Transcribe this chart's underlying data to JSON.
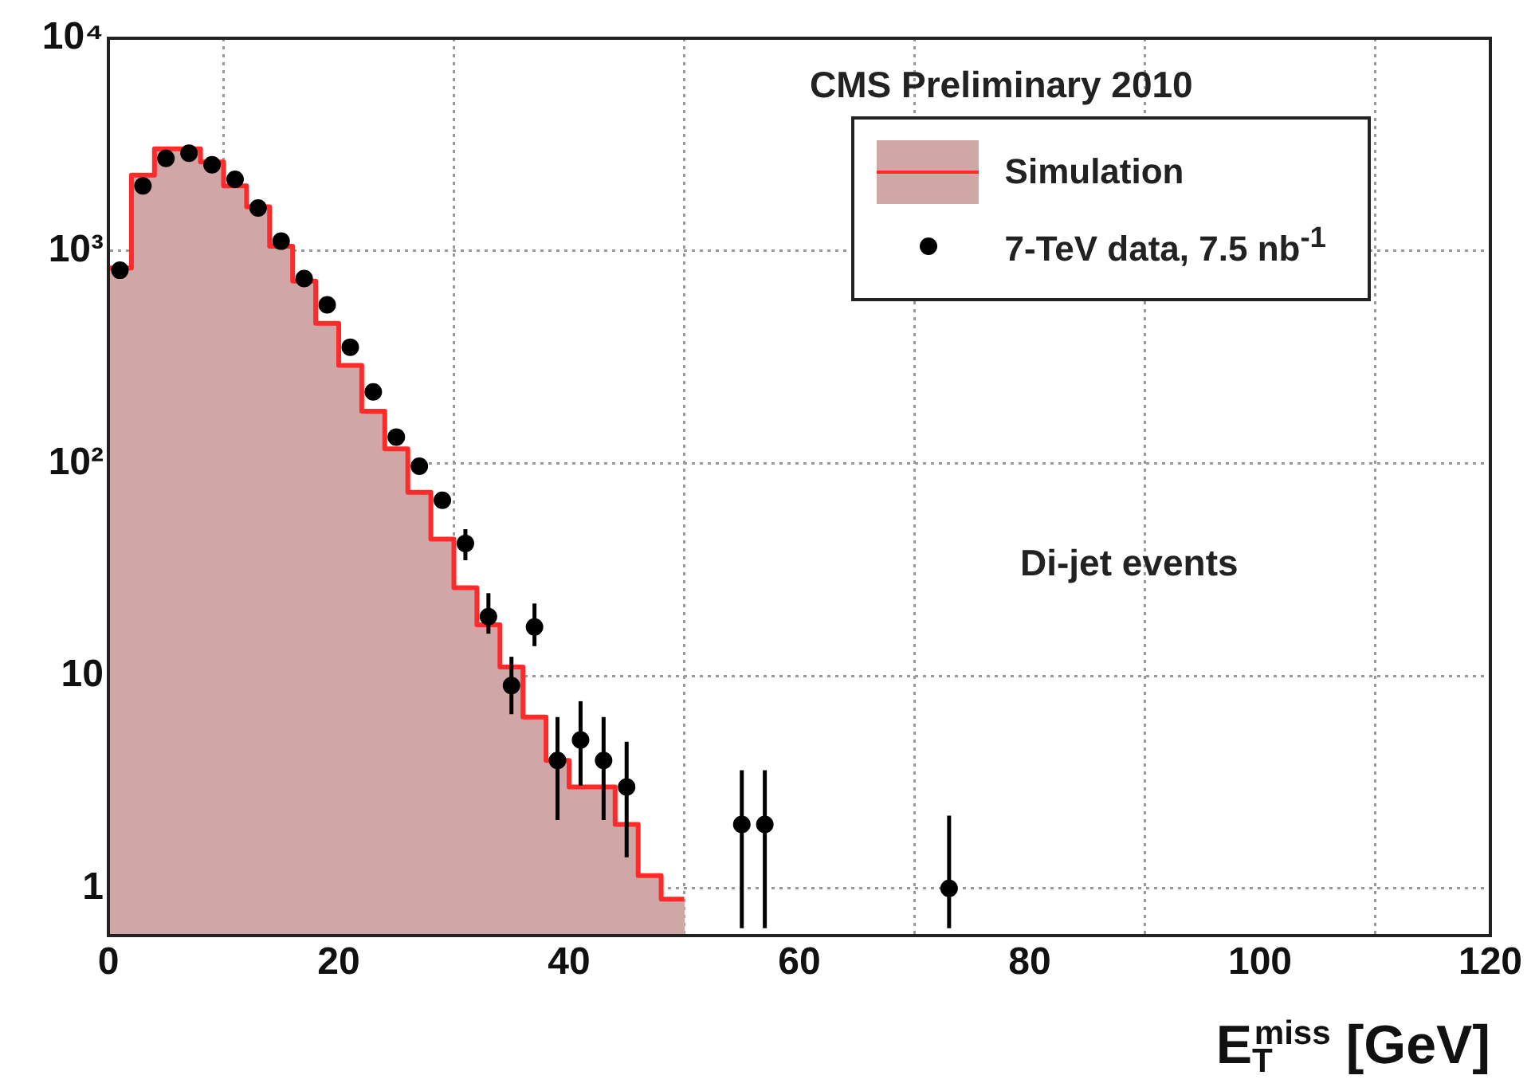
{
  "chart_data": {
    "type": "histogram",
    "xlabel": "E$_{T}$$^{miss}$ [GeV]",
    "bins": [
      0,
      2,
      4,
      6,
      8,
      10,
      12,
      14,
      16,
      18,
      20,
      22,
      24,
      26,
      28,
      30,
      32,
      34,
      36,
      38,
      40,
      42,
      44,
      46,
      48,
      50
    ],
    "series": [
      {
        "name": "Simulation",
        "color": "#d1a6a6",
        "values": [
          830,
          2270,
          3020,
          3020,
          2620,
          2020,
          1610,
          1050,
          720,
          456,
          289,
          176,
          117,
          73,
          44,
          26,
          17.4,
          11,
          6.4,
          4.0,
          3.0,
          3.0,
          2.0,
          1.15,
          0.89
        ]
      },
      {
        "type": "step",
        "color": "#ff2a2a",
        "marker": "none",
        "x": [
          0,
          2,
          4,
          6,
          8,
          10,
          12,
          14,
          16,
          18,
          20,
          22,
          24,
          26,
          28,
          30,
          32,
          34,
          36,
          38,
          40,
          42,
          44,
          46,
          48,
          50
        ],
        "values": [
          830,
          2270,
          3020,
          3020,
          2620,
          2020,
          1610,
          1050,
          720,
          456,
          289,
          176,
          117,
          73,
          44,
          26,
          17.4,
          11,
          6.4,
          4.0,
          3.0,
          3.0,
          2.0,
          1.15,
          0.89,
          0.89
        ]
      },
      {
        "name": "7-TeV data, 7.5 nb$^{-1}$",
        "type": "scatter",
        "color": "#000000",
        "x": [
          1,
          3,
          5,
          7,
          9,
          11,
          13,
          15,
          17,
          19,
          21,
          23,
          25,
          27,
          29,
          31,
          33,
          35,
          37,
          39,
          41,
          43,
          45,
          55,
          57,
          73
        ],
        "values": [
          810,
          2020,
          2720,
          2880,
          2540,
          2170,
          1590,
          1110,
          740,
          557,
          352,
          217,
          133,
          97,
          67,
          42,
          19,
          9,
          17,
          4,
          5,
          4,
          3,
          2,
          2,
          1
        ],
        "errors": [
          null,
          null,
          null,
          null,
          null,
          null,
          null,
          null,
          null,
          null,
          null,
          null,
          null,
          null,
          null,
          [
            35,
            49
          ],
          [
            15.8,
            24.5
          ],
          [
            6.6,
            12.3
          ],
          [
            13.8,
            21.9
          ],
          [
            2.1,
            6.4
          ],
          [
            3.05,
            7.6
          ],
          [
            2.1,
            6.4
          ],
          [
            1.4,
            4.9
          ],
          [
            0.65,
            3.6
          ],
          [
            0.65,
            3.6
          ],
          [
            0.65,
            2.2
          ]
        ]
      }
    ],
    "xlim": [
      0,
      120
    ],
    "xticks": [
      0,
      20,
      40,
      60,
      80,
      100,
      120
    ],
    "ylim": [
      0.64,
      10000
    ],
    "yticks": [
      1,
      10,
      {
        "value": 100,
        "label": "10²"
      },
      {
        "value": 1000,
        "label": "10³"
      },
      {
        "value": 10000,
        "label": "10⁴"
      }
    ],
    "log": true,
    "grid": true,
    "legend": "top right",
    "marker": "circle",
    "annotations": [
      "CMS Preliminary 2010",
      "Di-jet events"
    ]
  }
}
